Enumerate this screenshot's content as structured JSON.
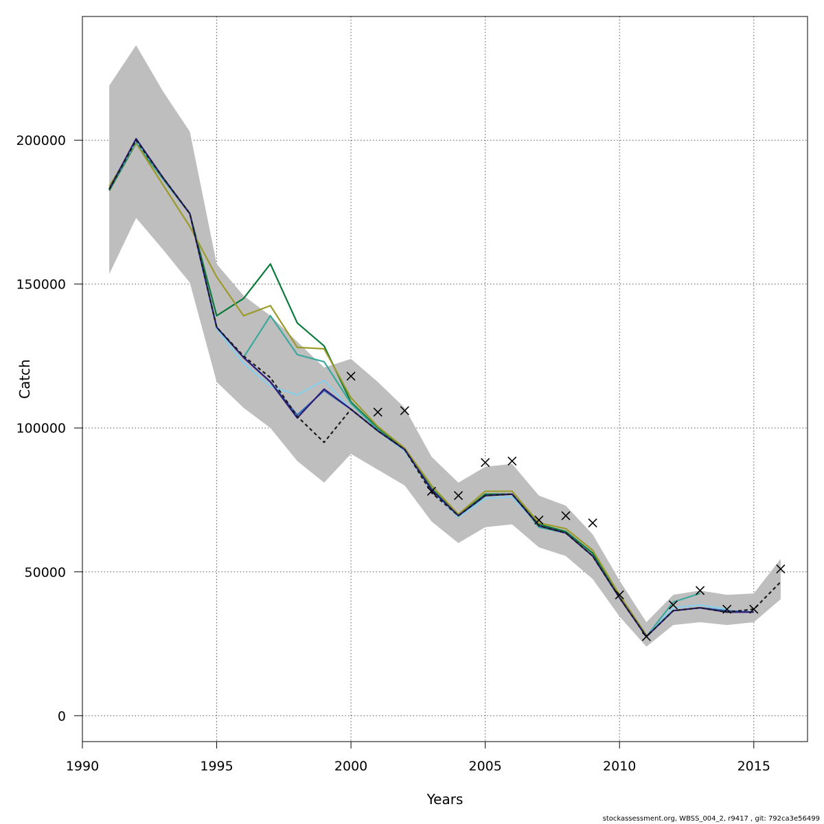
{
  "chart_data": {
    "type": "line",
    "title": "",
    "xlabel": "Years",
    "ylabel": "Catch",
    "xlim": [
      1990,
      2017
    ],
    "ylim": [
      -9000,
      243000
    ],
    "x_ticks": [
      1990,
      1995,
      2000,
      2005,
      2010,
      2015
    ],
    "y_ticks": [
      0,
      50000,
      100000,
      150000,
      200000
    ],
    "x_tick_labels": [
      "1990",
      "1995",
      "2000",
      "2005",
      "2010",
      "2015"
    ],
    "y_tick_labels": [
      "0",
      "50000",
      "100000",
      "150000",
      "200000"
    ],
    "grid": true,
    "legend": "none",
    "confidence_band": {
      "color": "#bebebe",
      "x": [
        1991,
        1992,
        1993,
        1994,
        1995,
        1996,
        1997,
        1998,
        1999,
        2000,
        2001,
        2002,
        2003,
        2004,
        2005,
        2006,
        2007,
        2008,
        2009,
        2010,
        2011,
        2012,
        2013,
        2014,
        2015,
        2016
      ],
      "upper": [
        219000,
        233000,
        217000,
        203000,
        157000,
        146000,
        139000,
        130000,
        121000,
        124000,
        116000,
        107000,
        90000,
        81000,
        86500,
        87500,
        76500,
        73000,
        63000,
        47000,
        32500,
        42000,
        43500,
        42000,
        42500,
        54500
      ],
      "lower": [
        153500,
        173000,
        162000,
        150500,
        116000,
        107000,
        100000,
        88500,
        81000,
        91000,
        85500,
        80000,
        67500,
        60000,
        65500,
        66500,
        58500,
        55500,
        47500,
        34500,
        24000,
        31500,
        32500,
        31500,
        32500,
        40500
      ]
    },
    "series": [
      {
        "key": "dark-green",
        "color": "#0a7a3a",
        "dashed": false,
        "x": [
          1991,
          1992,
          1993,
          1994,
          1995,
          1996,
          1997,
          1998,
          1999,
          2000,
          2001,
          2002,
          2003,
          2004,
          2005,
          2006,
          2007,
          2008,
          2009,
          2010,
          2011
        ],
        "values": [
          182500,
          199000,
          186500,
          174500,
          139000,
          145000,
          157000,
          136500,
          128500,
          109000,
          100000,
          92500,
          79000,
          69500,
          77000,
          77000,
          66500,
          64000,
          56500,
          41500,
          28000
        ]
      },
      {
        "key": "olive",
        "color": "#9c9a2a",
        "dashed": false,
        "x": [
          1991,
          1992,
          1993,
          1994,
          1995,
          1996,
          1997,
          1998,
          1999,
          2000,
          2001,
          2002,
          2003,
          2004,
          2005,
          2006,
          2007,
          2008,
          2009,
          2010,
          2011
        ],
        "values": [
          184000,
          199000,
          184500,
          170000,
          152500,
          139000,
          142500,
          128000,
          127500,
          110500,
          100500,
          93000,
          80000,
          70000,
          78000,
          78000,
          67000,
          65000,
          57500,
          42000,
          28000
        ]
      },
      {
        "key": "teal",
        "color": "#3aa89a",
        "dashed": false,
        "x": [
          1991,
          1992,
          1993,
          1994,
          1995,
          1996,
          1997,
          1998,
          1999,
          2000,
          2001,
          2002,
          2003,
          2004,
          2005,
          2006,
          2007,
          2008,
          2009,
          2010,
          2011,
          2012,
          2013
        ],
        "values": [
          183000,
          199500,
          186500,
          174500,
          135000,
          124500,
          139000,
          125500,
          123000,
          108500,
          99500,
          92000,
          78500,
          69000,
          76500,
          77000,
          65500,
          63500,
          55500,
          41000,
          27500,
          39500,
          42500
        ]
      },
      {
        "key": "sky-blue",
        "color": "#87ceeb",
        "dashed": false,
        "x": [
          1991,
          1992,
          1993,
          1994,
          1995,
          1996,
          1997,
          1998,
          1999,
          2000,
          2001,
          2002,
          2003,
          2004,
          2005,
          2006,
          2007,
          2008,
          2009,
          2010,
          2011,
          2012,
          2013,
          2014
        ],
        "values": [
          183000,
          200000,
          187000,
          174500,
          134500,
          122500,
          114500,
          111500,
          116500,
          106500,
          99000,
          92000,
          78000,
          69000,
          75500,
          76000,
          66000,
          63500,
          55500,
          41000,
          27500,
          37500,
          38500,
          37000
        ]
      },
      {
        "key": "blue",
        "color": "#2f6eb5",
        "dashed": false,
        "x": [
          1991,
          1992,
          1993,
          1994,
          1995,
          1996,
          1997,
          1998,
          1999,
          2000,
          2001,
          2002,
          2003,
          2004,
          2005,
          2006,
          2007,
          2008,
          2009,
          2010,
          2011,
          2012,
          2013,
          2014,
          2015
        ],
        "values": [
          183000,
          200500,
          187000,
          174500,
          135000,
          124500,
          116000,
          104500,
          113000,
          106500,
          99000,
          92500,
          78500,
          69500,
          76500,
          77000,
          66000,
          63500,
          55500,
          41000,
          27500,
          36500,
          37500,
          36500,
          36000
        ]
      },
      {
        "key": "indigo",
        "color": "#2e1a78",
        "dashed": false,
        "x": [
          1991,
          1992,
          1993,
          1994,
          1995,
          1996,
          1997,
          1998,
          1999,
          2000,
          2001,
          2002,
          2003,
          2004,
          2005,
          2006,
          2007,
          2008,
          2009,
          2010,
          2011,
          2012,
          2013,
          2014,
          2015
        ],
        "values": [
          183000,
          200500,
          187000,
          174500,
          135000,
          124500,
          116000,
          103500,
          113500,
          106500,
          99000,
          92500,
          78500,
          69500,
          76500,
          77000,
          66000,
          63500,
          55500,
          41000,
          27500,
          36500,
          37500,
          36000,
          36000
        ]
      },
      {
        "key": "black-dashed",
        "color": "#1a1a1a",
        "dashed": true,
        "x": [
          1991,
          1992,
          1993,
          1994,
          1995,
          1996,
          1997,
          1998,
          1999,
          2000,
          2001,
          2002,
          2003,
          2004,
          2005,
          2006,
          2007,
          2008,
          2009,
          2010,
          2011,
          2012,
          2013,
          2014,
          2015,
          2016
        ],
        "values": [
          183000,
          200000,
          187000,
          174500,
          135000,
          125000,
          117500,
          104000,
          95000,
          106500,
          99000,
          92500,
          77500,
          69500,
          76500,
          77000,
          66000,
          63500,
          55500,
          41000,
          27500,
          36500,
          37500,
          36000,
          37000,
          46500
        ]
      }
    ],
    "observations": {
      "marker": "x",
      "x": [
        2000,
        2001,
        2002,
        2003,
        2004,
        2005,
        2006,
        2007,
        2008,
        2009,
        2010,
        2011,
        2012,
        2013,
        2014,
        2015,
        2016
      ],
      "values": [
        118000,
        105500,
        106000,
        78000,
        76500,
        88000,
        88500,
        68000,
        69500,
        67000,
        42000,
        27500,
        38500,
        43500,
        37000,
        37000,
        51000
      ]
    }
  },
  "footer": {
    "text": "stockassessment.org, WBSS_004_2, r9417 , git: 792ca3e56499"
  }
}
